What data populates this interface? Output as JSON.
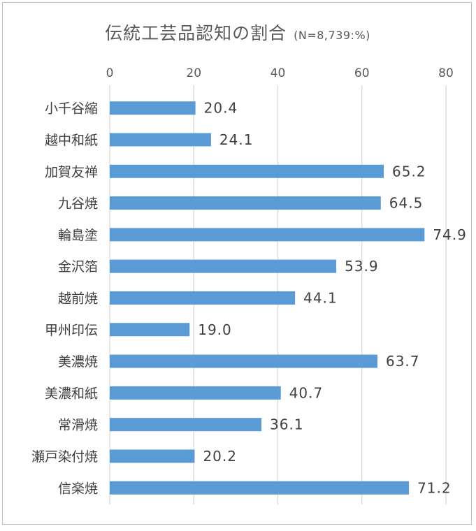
{
  "chart_data": {
    "type": "bar",
    "orientation": "horizontal",
    "title": "伝統工芸品認知の割合",
    "subtitle": "(N=8,739:%)",
    "categories": [
      "小千谷縮",
      "越中和紙",
      "加賀友禅",
      "九谷焼",
      "輪島塗",
      "金沢箔",
      "越前焼",
      "甲州印伝",
      "美濃焼",
      "美濃和紙",
      "常滑焼",
      "瀬戸染付焼",
      "信楽焼"
    ],
    "values": [
      20.4,
      24.1,
      65.2,
      64.5,
      74.9,
      53.9,
      44.1,
      19.0,
      63.7,
      40.7,
      36.1,
      20.2,
      71.2
    ],
    "value_labels": [
      "20.4",
      "24.1",
      "65.2",
      "64.5",
      "74.9",
      "53.9",
      "44.1",
      "19.0",
      "63.7",
      "40.7",
      "36.1",
      "20.2",
      "71.2"
    ],
    "xlim": [
      0,
      80
    ],
    "xticks": [
      0,
      20,
      40,
      60,
      80
    ],
    "xtick_labels": [
      "0",
      "20",
      "40",
      "60",
      "80"
    ],
    "x_axis_position": "top",
    "grid": true,
    "bar_color": "#5b9bd5",
    "grid_color": "#d9d9d9"
  }
}
